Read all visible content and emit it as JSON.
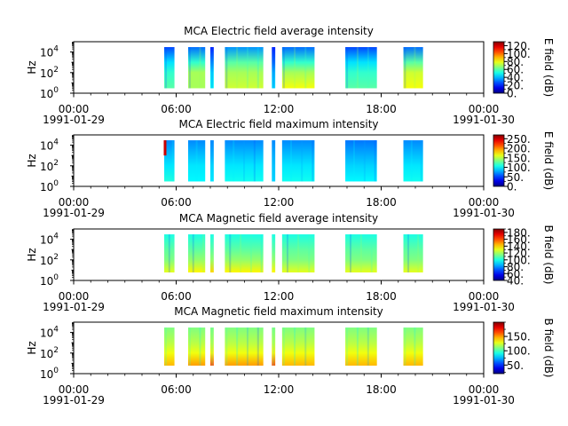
{
  "chart_data": [
    {
      "type": "heatmap",
      "title": "MCA  Electric field average intensity",
      "ylabel": "Hz",
      "yscale": "log",
      "ylim": [
        1,
        100000
      ],
      "y_ticks": [
        {
          "base": "10",
          "exp": "0"
        },
        {
          "base": "10",
          "exp": "2"
        },
        {
          "base": "10",
          "exp": "4"
        }
      ],
      "x_range_hours": [
        0,
        24
      ],
      "x_ticks": [
        {
          "hour": 0,
          "time": "00:00",
          "date": "1991-01-29"
        },
        {
          "hour": 6,
          "time": "06:00",
          "date": ""
        },
        {
          "hour": 12,
          "time": "12:00",
          "date": ""
        },
        {
          "hour": 18,
          "time": "18:00",
          "date": ""
        },
        {
          "hour": 24,
          "time": "00:00",
          "date": "1991-01-30"
        }
      ],
      "colorbar": {
        "label": "E field (dB)",
        "min": 0,
        "max": 130,
        "ticks": [
          {
            "v": 0,
            "label": "0."
          },
          {
            "v": 20,
            "label": "20."
          },
          {
            "v": 40,
            "label": "40."
          },
          {
            "v": 60,
            "label": "60."
          },
          {
            "v": 80,
            "label": "80."
          },
          {
            "v": 100,
            "label": "100."
          },
          {
            "v": 120,
            "label": "120."
          }
        ]
      },
      "data_segments_hours": [
        [
          5.3,
          5.9
        ],
        [
          6.7,
          7.7
        ],
        [
          8.0,
          8.2
        ],
        [
          8.85,
          11.1
        ],
        [
          11.6,
          11.8
        ],
        [
          12.2,
          14.1
        ],
        [
          15.9,
          17.75
        ],
        [
          19.3,
          20.45
        ]
      ],
      "coverage_hz": [
        3,
        30000
      ],
      "intensity_by_segment": [
        [
          [
            3,
            60
          ],
          [
            100,
            55
          ],
          [
            1000,
            45
          ],
          [
            30000,
            25
          ]
        ],
        [
          [
            3,
            70
          ],
          [
            100,
            70
          ],
          [
            1000,
            55
          ],
          [
            30000,
            30
          ]
        ],
        [
          [
            3,
            50
          ],
          [
            100,
            45
          ],
          [
            1000,
            35
          ],
          [
            30000,
            20
          ]
        ],
        [
          [
            3,
            75
          ],
          [
            100,
            70
          ],
          [
            1000,
            60
          ],
          [
            30000,
            35
          ]
        ],
        [
          [
            3,
            45
          ],
          [
            100,
            40
          ],
          [
            1000,
            30
          ],
          [
            30000,
            20
          ]
        ],
        [
          [
            3,
            80
          ],
          [
            100,
            70
          ],
          [
            1000,
            55
          ],
          [
            30000,
            30
          ]
        ],
        [
          [
            3,
            60
          ],
          [
            100,
            55
          ],
          [
            1000,
            45
          ],
          [
            30000,
            25
          ]
        ],
        [
          [
            3,
            80
          ],
          [
            100,
            75
          ],
          [
            1000,
            60
          ],
          [
            30000,
            30
          ]
        ]
      ]
    },
    {
      "type": "heatmap",
      "title": "MCA  Electric field maximum intensity",
      "ylabel": "Hz",
      "yscale": "log",
      "ylim": [
        1,
        100000
      ],
      "y_ticks": [
        {
          "base": "10",
          "exp": "0"
        },
        {
          "base": "10",
          "exp": "2"
        },
        {
          "base": "10",
          "exp": "4"
        }
      ],
      "x_range_hours": [
        0,
        24
      ],
      "x_ticks": [
        {
          "hour": 0,
          "time": "00:00",
          "date": "1991-01-29"
        },
        {
          "hour": 6,
          "time": "06:00",
          "date": ""
        },
        {
          "hour": 12,
          "time": "12:00",
          "date": ""
        },
        {
          "hour": 18,
          "time": "18:00",
          "date": ""
        },
        {
          "hour": 24,
          "time": "00:00",
          "date": "1991-01-30"
        }
      ],
      "colorbar": {
        "label": "E field (dB)",
        "min": 0,
        "max": 270,
        "ticks": [
          {
            "v": 0,
            "label": "0."
          },
          {
            "v": 50,
            "label": "50."
          },
          {
            "v": 100,
            "label": "100."
          },
          {
            "v": 150,
            "label": "150."
          },
          {
            "v": 200,
            "label": "200."
          },
          {
            "v": 250,
            "label": "250."
          }
        ]
      },
      "data_segments_hours": [
        [
          5.3,
          5.9
        ],
        [
          6.7,
          7.7
        ],
        [
          8.0,
          8.2
        ],
        [
          8.85,
          11.1
        ],
        [
          11.6,
          11.8
        ],
        [
          12.2,
          14.1
        ],
        [
          15.9,
          17.75
        ],
        [
          19.3,
          20.45
        ]
      ],
      "coverage_hz": [
        3,
        30000
      ],
      "intensity_by_segment": [
        [
          [
            3,
            110
          ],
          [
            100,
            95
          ],
          [
            1000,
            85
          ],
          [
            30000,
            70
          ]
        ],
        [
          [
            3,
            100
          ],
          [
            100,
            95
          ],
          [
            1000,
            85
          ],
          [
            30000,
            70
          ]
        ],
        [
          [
            3,
            95
          ],
          [
            100,
            90
          ],
          [
            1000,
            80
          ],
          [
            30000,
            70
          ]
        ],
        [
          [
            3,
            105
          ],
          [
            100,
            95
          ],
          [
            1000,
            85
          ],
          [
            30000,
            70
          ]
        ],
        [
          [
            3,
            90
          ],
          [
            100,
            85
          ],
          [
            1000,
            80
          ],
          [
            30000,
            70
          ]
        ],
        [
          [
            3,
            105
          ],
          [
            100,
            95
          ],
          [
            1000,
            85
          ],
          [
            30000,
            70
          ]
        ],
        [
          [
            3,
            100
          ],
          [
            100,
            90
          ],
          [
            1000,
            80
          ],
          [
            30000,
            65
          ]
        ],
        [
          [
            3,
            105
          ],
          [
            100,
            95
          ],
          [
            1000,
            85
          ],
          [
            30000,
            70
          ]
        ]
      ],
      "hotspot": {
        "hour": 5.35,
        "hz": [
          1000,
          30000
        ],
        "value": 250
      }
    },
    {
      "type": "heatmap",
      "title": "MCA  Magnetic field average intensity",
      "ylabel": "Hz",
      "yscale": "log",
      "ylim": [
        1,
        100000
      ],
      "y_ticks": [
        {
          "base": "10",
          "exp": "0"
        },
        {
          "base": "10",
          "exp": "2"
        },
        {
          "base": "10",
          "exp": "4"
        }
      ],
      "x_range_hours": [
        0,
        24
      ],
      "x_ticks": [
        {
          "hour": 0,
          "time": "00:00",
          "date": "1991-01-29"
        },
        {
          "hour": 6,
          "time": "06:00",
          "date": ""
        },
        {
          "hour": 12,
          "time": "12:00",
          "date": ""
        },
        {
          "hour": 18,
          "time": "18:00",
          "date": ""
        },
        {
          "hour": 24,
          "time": "00:00",
          "date": "1991-01-30"
        }
      ],
      "colorbar": {
        "label": "B field (dB)",
        "min": 40,
        "max": 190,
        "ticks": [
          {
            "v": 40,
            "label": "40."
          },
          {
            "v": 60,
            "label": "60."
          },
          {
            "v": 80,
            "label": "80."
          },
          {
            "v": 100,
            "label": "100."
          },
          {
            "v": 120,
            "label": "120."
          },
          {
            "v": 140,
            "label": "140."
          },
          {
            "v": 160,
            "label": "160."
          },
          {
            "v": 180,
            "label": "180."
          }
        ]
      },
      "data_segments_hours": [
        [
          5.3,
          5.9
        ],
        [
          6.7,
          7.7
        ],
        [
          8.0,
          8.2
        ],
        [
          8.85,
          11.1
        ],
        [
          11.6,
          11.8
        ],
        [
          12.2,
          14.1
        ],
        [
          15.9,
          17.75
        ],
        [
          19.3,
          20.45
        ]
      ],
      "coverage_hz": [
        6,
        30000
      ],
      "intensity_by_segment": [
        [
          [
            6,
            130
          ],
          [
            100,
            115
          ],
          [
            1000,
            110
          ],
          [
            30000,
            100
          ]
        ],
        [
          [
            6,
            135
          ],
          [
            100,
            118
          ],
          [
            1000,
            110
          ],
          [
            30000,
            100
          ]
        ],
        [
          [
            6,
            140
          ],
          [
            100,
            118
          ],
          [
            1000,
            110
          ],
          [
            30000,
            100
          ]
        ],
        [
          [
            6,
            135
          ],
          [
            100,
            118
          ],
          [
            1000,
            110
          ],
          [
            30000,
            100
          ]
        ],
        [
          [
            6,
            135
          ],
          [
            100,
            118
          ],
          [
            1000,
            110
          ],
          [
            30000,
            100
          ]
        ],
        [
          [
            6,
            130
          ],
          [
            100,
            115
          ],
          [
            1000,
            110
          ],
          [
            30000,
            100
          ]
        ],
        [
          [
            6,
            130
          ],
          [
            100,
            115
          ],
          [
            1000,
            110
          ],
          [
            30000,
            100
          ]
        ],
        [
          [
            6,
            130
          ],
          [
            100,
            115
          ],
          [
            1000,
            110
          ],
          [
            30000,
            100
          ]
        ]
      ]
    },
    {
      "type": "heatmap",
      "title": "MCA  Magnetic field maximum intensity",
      "ylabel": "Hz",
      "yscale": "log",
      "ylim": [
        1,
        100000
      ],
      "y_ticks": [
        {
          "base": "10",
          "exp": "0"
        },
        {
          "base": "10",
          "exp": "2"
        },
        {
          "base": "10",
          "exp": "4"
        }
      ],
      "x_range_hours": [
        0,
        24
      ],
      "x_ticks": [
        {
          "hour": 0,
          "time": "00:00",
          "date": "1991-01-29"
        },
        {
          "hour": 6,
          "time": "06:00",
          "date": ""
        },
        {
          "hour": 12,
          "time": "12:00",
          "date": ""
        },
        {
          "hour": 18,
          "time": "18:00",
          "date": ""
        },
        {
          "hour": 24,
          "time": "00:00",
          "date": "1991-01-30"
        }
      ],
      "colorbar": {
        "label": "B field (dB)",
        "min": 20,
        "max": 200,
        "ticks": [
          {
            "v": 50,
            "label": "50."
          },
          {
            "v": 100,
            "label": "100."
          },
          {
            "v": 150,
            "label": "150."
          }
        ]
      },
      "data_segments_hours": [
        [
          5.3,
          5.9
        ],
        [
          6.7,
          7.7
        ],
        [
          8.0,
          8.2
        ],
        [
          8.85,
          11.1
        ],
        [
          11.6,
          11.8
        ],
        [
          12.2,
          14.1
        ],
        [
          15.9,
          17.75
        ],
        [
          19.3,
          20.45
        ]
      ],
      "coverage_hz": [
        6,
        30000
      ],
      "intensity_by_segment": [
        [
          [
            6,
            145
          ],
          [
            100,
            130
          ],
          [
            1000,
            120
          ],
          [
            30000,
            110
          ]
        ],
        [
          [
            6,
            150
          ],
          [
            100,
            130
          ],
          [
            1000,
            120
          ],
          [
            30000,
            110
          ]
        ],
        [
          [
            6,
            165
          ],
          [
            100,
            135
          ],
          [
            1000,
            120
          ],
          [
            30000,
            110
          ]
        ],
        [
          [
            6,
            150
          ],
          [
            100,
            130
          ],
          [
            1000,
            120
          ],
          [
            30000,
            110
          ]
        ],
        [
          [
            6,
            165
          ],
          [
            100,
            135
          ],
          [
            1000,
            120
          ],
          [
            30000,
            110
          ]
        ],
        [
          [
            6,
            145
          ],
          [
            100,
            130
          ],
          [
            1000,
            120
          ],
          [
            30000,
            110
          ]
        ],
        [
          [
            6,
            145
          ],
          [
            100,
            130
          ],
          [
            1000,
            120
          ],
          [
            30000,
            110
          ]
        ],
        [
          [
            6,
            145
          ],
          [
            100,
            130
          ],
          [
            1000,
            120
          ],
          [
            30000,
            110
          ]
        ]
      ]
    }
  ]
}
